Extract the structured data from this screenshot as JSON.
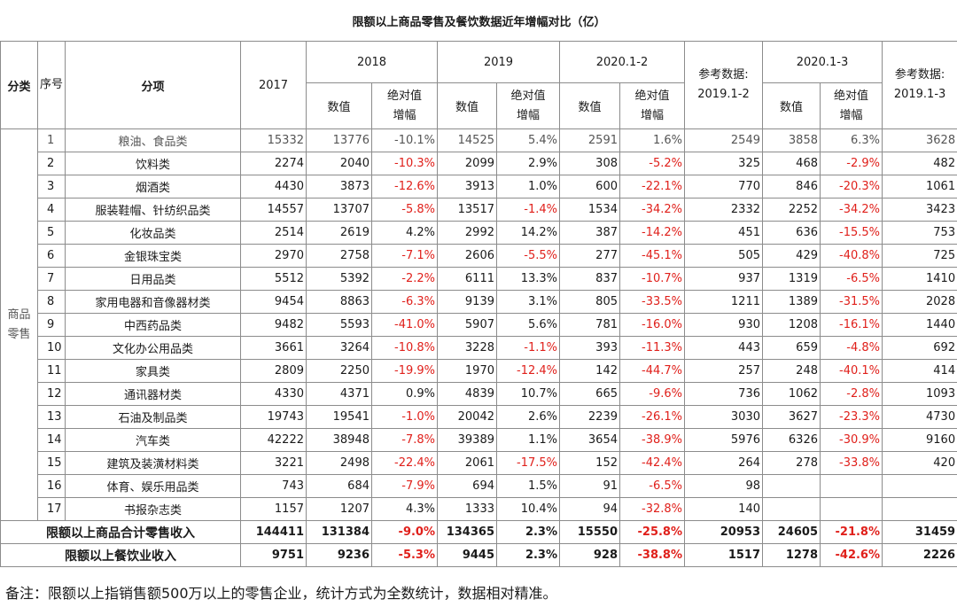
{
  "title": "限额以上商品零售及餐饮数据近年增幅对比（亿）",
  "headers": {
    "category": "分类",
    "seq": "序号",
    "item": "分项",
    "y2017": "2017",
    "y2018": "2018",
    "y2019": "2019",
    "y2020_12": "2020.1-2",
    "ref_2019_12": "参考数据:\n2019.1-2",
    "ref_2019_12_line1": "参考数据:",
    "ref_2019_12_line2": "2019.1-2",
    "y2020_13": "2020.1-3",
    "ref_2019_13_line1": "参考数据:",
    "ref_2019_13_line2": "2019.1-3",
    "value": "数值",
    "abs_growth_line1": "绝对值",
    "abs_growth_line2": "增幅"
  },
  "category_label": "商品零售",
  "rows": [
    {
      "seq": "1",
      "item": "粮油、食品类",
      "y2017": "15332",
      "v2018": "13776",
      "g2018": "-10.1%",
      "v2019": "14525",
      "g2019": "5.4%",
      "v2020_12": "2591",
      "g2020_12": "1.6%",
      "ref12": "2549",
      "v2020_13": "3858",
      "g2020_13": "6.3%",
      "ref13": "3628"
    },
    {
      "seq": "2",
      "item": "饮料类",
      "y2017": "2274",
      "v2018": "2040",
      "g2018": "-10.3%",
      "v2019": "2099",
      "g2019": "2.9%",
      "v2020_12": "308",
      "g2020_12": "-5.2%",
      "ref12": "325",
      "v2020_13": "468",
      "g2020_13": "-2.9%",
      "ref13": "482"
    },
    {
      "seq": "3",
      "item": "烟酒类",
      "y2017": "4430",
      "v2018": "3873",
      "g2018": "-12.6%",
      "v2019": "3913",
      "g2019": "1.0%",
      "v2020_12": "600",
      "g2020_12": "-22.1%",
      "ref12": "770",
      "v2020_13": "846",
      "g2020_13": "-20.3%",
      "ref13": "1061"
    },
    {
      "seq": "4",
      "item": "服装鞋帽、针纺织品类",
      "y2017": "14557",
      "v2018": "13707",
      "g2018": "-5.8%",
      "v2019": "13517",
      "g2019": "-1.4%",
      "v2020_12": "1534",
      "g2020_12": "-34.2%",
      "ref12": "2332",
      "v2020_13": "2252",
      "g2020_13": "-34.2%",
      "ref13": "3423"
    },
    {
      "seq": "5",
      "item": "化妆品类",
      "y2017": "2514",
      "v2018": "2619",
      "g2018": "4.2%",
      "v2019": "2992",
      "g2019": "14.2%",
      "v2020_12": "387",
      "g2020_12": "-14.2%",
      "ref12": "451",
      "v2020_13": "636",
      "g2020_13": "-15.5%",
      "ref13": "753"
    },
    {
      "seq": "6",
      "item": "金银珠宝类",
      "y2017": "2970",
      "v2018": "2758",
      "g2018": "-7.1%",
      "v2019": "2606",
      "g2019": "-5.5%",
      "v2020_12": "277",
      "g2020_12": "-45.1%",
      "ref12": "505",
      "v2020_13": "429",
      "g2020_13": "-40.8%",
      "ref13": "725"
    },
    {
      "seq": "7",
      "item": "日用品类",
      "y2017": "5512",
      "v2018": "5392",
      "g2018": "-2.2%",
      "v2019": "6111",
      "g2019": "13.3%",
      "v2020_12": "837",
      "g2020_12": "-10.7%",
      "ref12": "937",
      "v2020_13": "1319",
      "g2020_13": "-6.5%",
      "ref13": "1410"
    },
    {
      "seq": "8",
      "item": "家用电器和音像器材类",
      "y2017": "9454",
      "v2018": "8863",
      "g2018": "-6.3%",
      "v2019": "9139",
      "g2019": "3.1%",
      "v2020_12": "805",
      "g2020_12": "-33.5%",
      "ref12": "1211",
      "v2020_13": "1389",
      "g2020_13": "-31.5%",
      "ref13": "2028"
    },
    {
      "seq": "9",
      "item": "中西药品类",
      "y2017": "9482",
      "v2018": "5593",
      "g2018": "-41.0%",
      "v2019": "5907",
      "g2019": "5.6%",
      "v2020_12": "781",
      "g2020_12": "-16.0%",
      "ref12": "930",
      "v2020_13": "1208",
      "g2020_13": "-16.1%",
      "ref13": "1440"
    },
    {
      "seq": "10",
      "item": "文化办公用品类",
      "y2017": "3661",
      "v2018": "3264",
      "g2018": "-10.8%",
      "v2019": "3228",
      "g2019": "-1.1%",
      "v2020_12": "393",
      "g2020_12": "-11.3%",
      "ref12": "443",
      "v2020_13": "659",
      "g2020_13": "-4.8%",
      "ref13": "692"
    },
    {
      "seq": "11",
      "item": "家具类",
      "y2017": "2809",
      "v2018": "2250",
      "g2018": "-19.9%",
      "v2019": "1970",
      "g2019": "-12.4%",
      "v2020_12": "142",
      "g2020_12": "-44.7%",
      "ref12": "257",
      "v2020_13": "248",
      "g2020_13": "-40.1%",
      "ref13": "414"
    },
    {
      "seq": "12",
      "item": "通讯器材类",
      "y2017": "4330",
      "v2018": "4371",
      "g2018": "0.9%",
      "v2019": "4839",
      "g2019": "10.7%",
      "v2020_12": "665",
      "g2020_12": "-9.6%",
      "ref12": "736",
      "v2020_13": "1062",
      "g2020_13": "-2.8%",
      "ref13": "1093"
    },
    {
      "seq": "13",
      "item": "石油及制品类",
      "y2017": "19743",
      "v2018": "19541",
      "g2018": "-1.0%",
      "v2019": "20042",
      "g2019": "2.6%",
      "v2020_12": "2239",
      "g2020_12": "-26.1%",
      "ref12": "3030",
      "v2020_13": "3627",
      "g2020_13": "-23.3%",
      "ref13": "4730"
    },
    {
      "seq": "14",
      "item": "汽车类",
      "y2017": "42222",
      "v2018": "38948",
      "g2018": "-7.8%",
      "v2019": "39389",
      "g2019": "1.1%",
      "v2020_12": "3654",
      "g2020_12": "-38.9%",
      "ref12": "5976",
      "v2020_13": "6326",
      "g2020_13": "-30.9%",
      "ref13": "9160"
    },
    {
      "seq": "15",
      "item": "建筑及装潢材料类",
      "y2017": "3221",
      "v2018": "2498",
      "g2018": "-22.4%",
      "v2019": "2061",
      "g2019": "-17.5%",
      "v2020_12": "152",
      "g2020_12": "-42.4%",
      "ref12": "264",
      "v2020_13": "278",
      "g2020_13": "-33.8%",
      "ref13": "420"
    },
    {
      "seq": "16",
      "item": "体育、娱乐用品类",
      "y2017": "743",
      "v2018": "684",
      "g2018": "-7.9%",
      "v2019": "694",
      "g2019": "1.5%",
      "v2020_12": "91",
      "g2020_12": "-6.5%",
      "ref12": "98",
      "v2020_13": "",
      "g2020_13": "",
      "ref13": ""
    },
    {
      "seq": "17",
      "item": "书报杂志类",
      "y2017": "1157",
      "v2018": "1207",
      "g2018": "4.3%",
      "v2019": "1333",
      "g2019": "10.4%",
      "v2020_12": "94",
      "g2020_12": "-32.8%",
      "ref12": "140",
      "v2020_13": "",
      "g2020_13": "",
      "ref13": ""
    }
  ],
  "totals": [
    {
      "label": "限额以上商品合计零售收入",
      "y2017": "144411",
      "v2018": "131384",
      "g2018": "-9.0%",
      "v2019": "134365",
      "g2019": "2.3%",
      "v2020_12": "15550",
      "g2020_12": "-25.8%",
      "ref12": "20953",
      "v2020_13": "24605",
      "g2020_13": "-21.8%",
      "ref13": "31459"
    },
    {
      "label": "限额以上餐饮业收入",
      "y2017": "9751",
      "v2018": "9236",
      "g2018": "-5.3%",
      "v2019": "9445",
      "g2019": "2.3%",
      "v2020_12": "928",
      "g2020_12": "-38.8%",
      "ref12": "1517",
      "v2020_13": "1278",
      "g2020_13": "-42.6%",
      "ref13": "2226"
    }
  ],
  "note": "备注：限额以上指销售额500万以上的零售企业，统计方式为全数统计，数据相对精准。",
  "colors": {
    "negative": "#e0201b",
    "border": "#8c8c8c",
    "text": "#1a1a1a"
  }
}
